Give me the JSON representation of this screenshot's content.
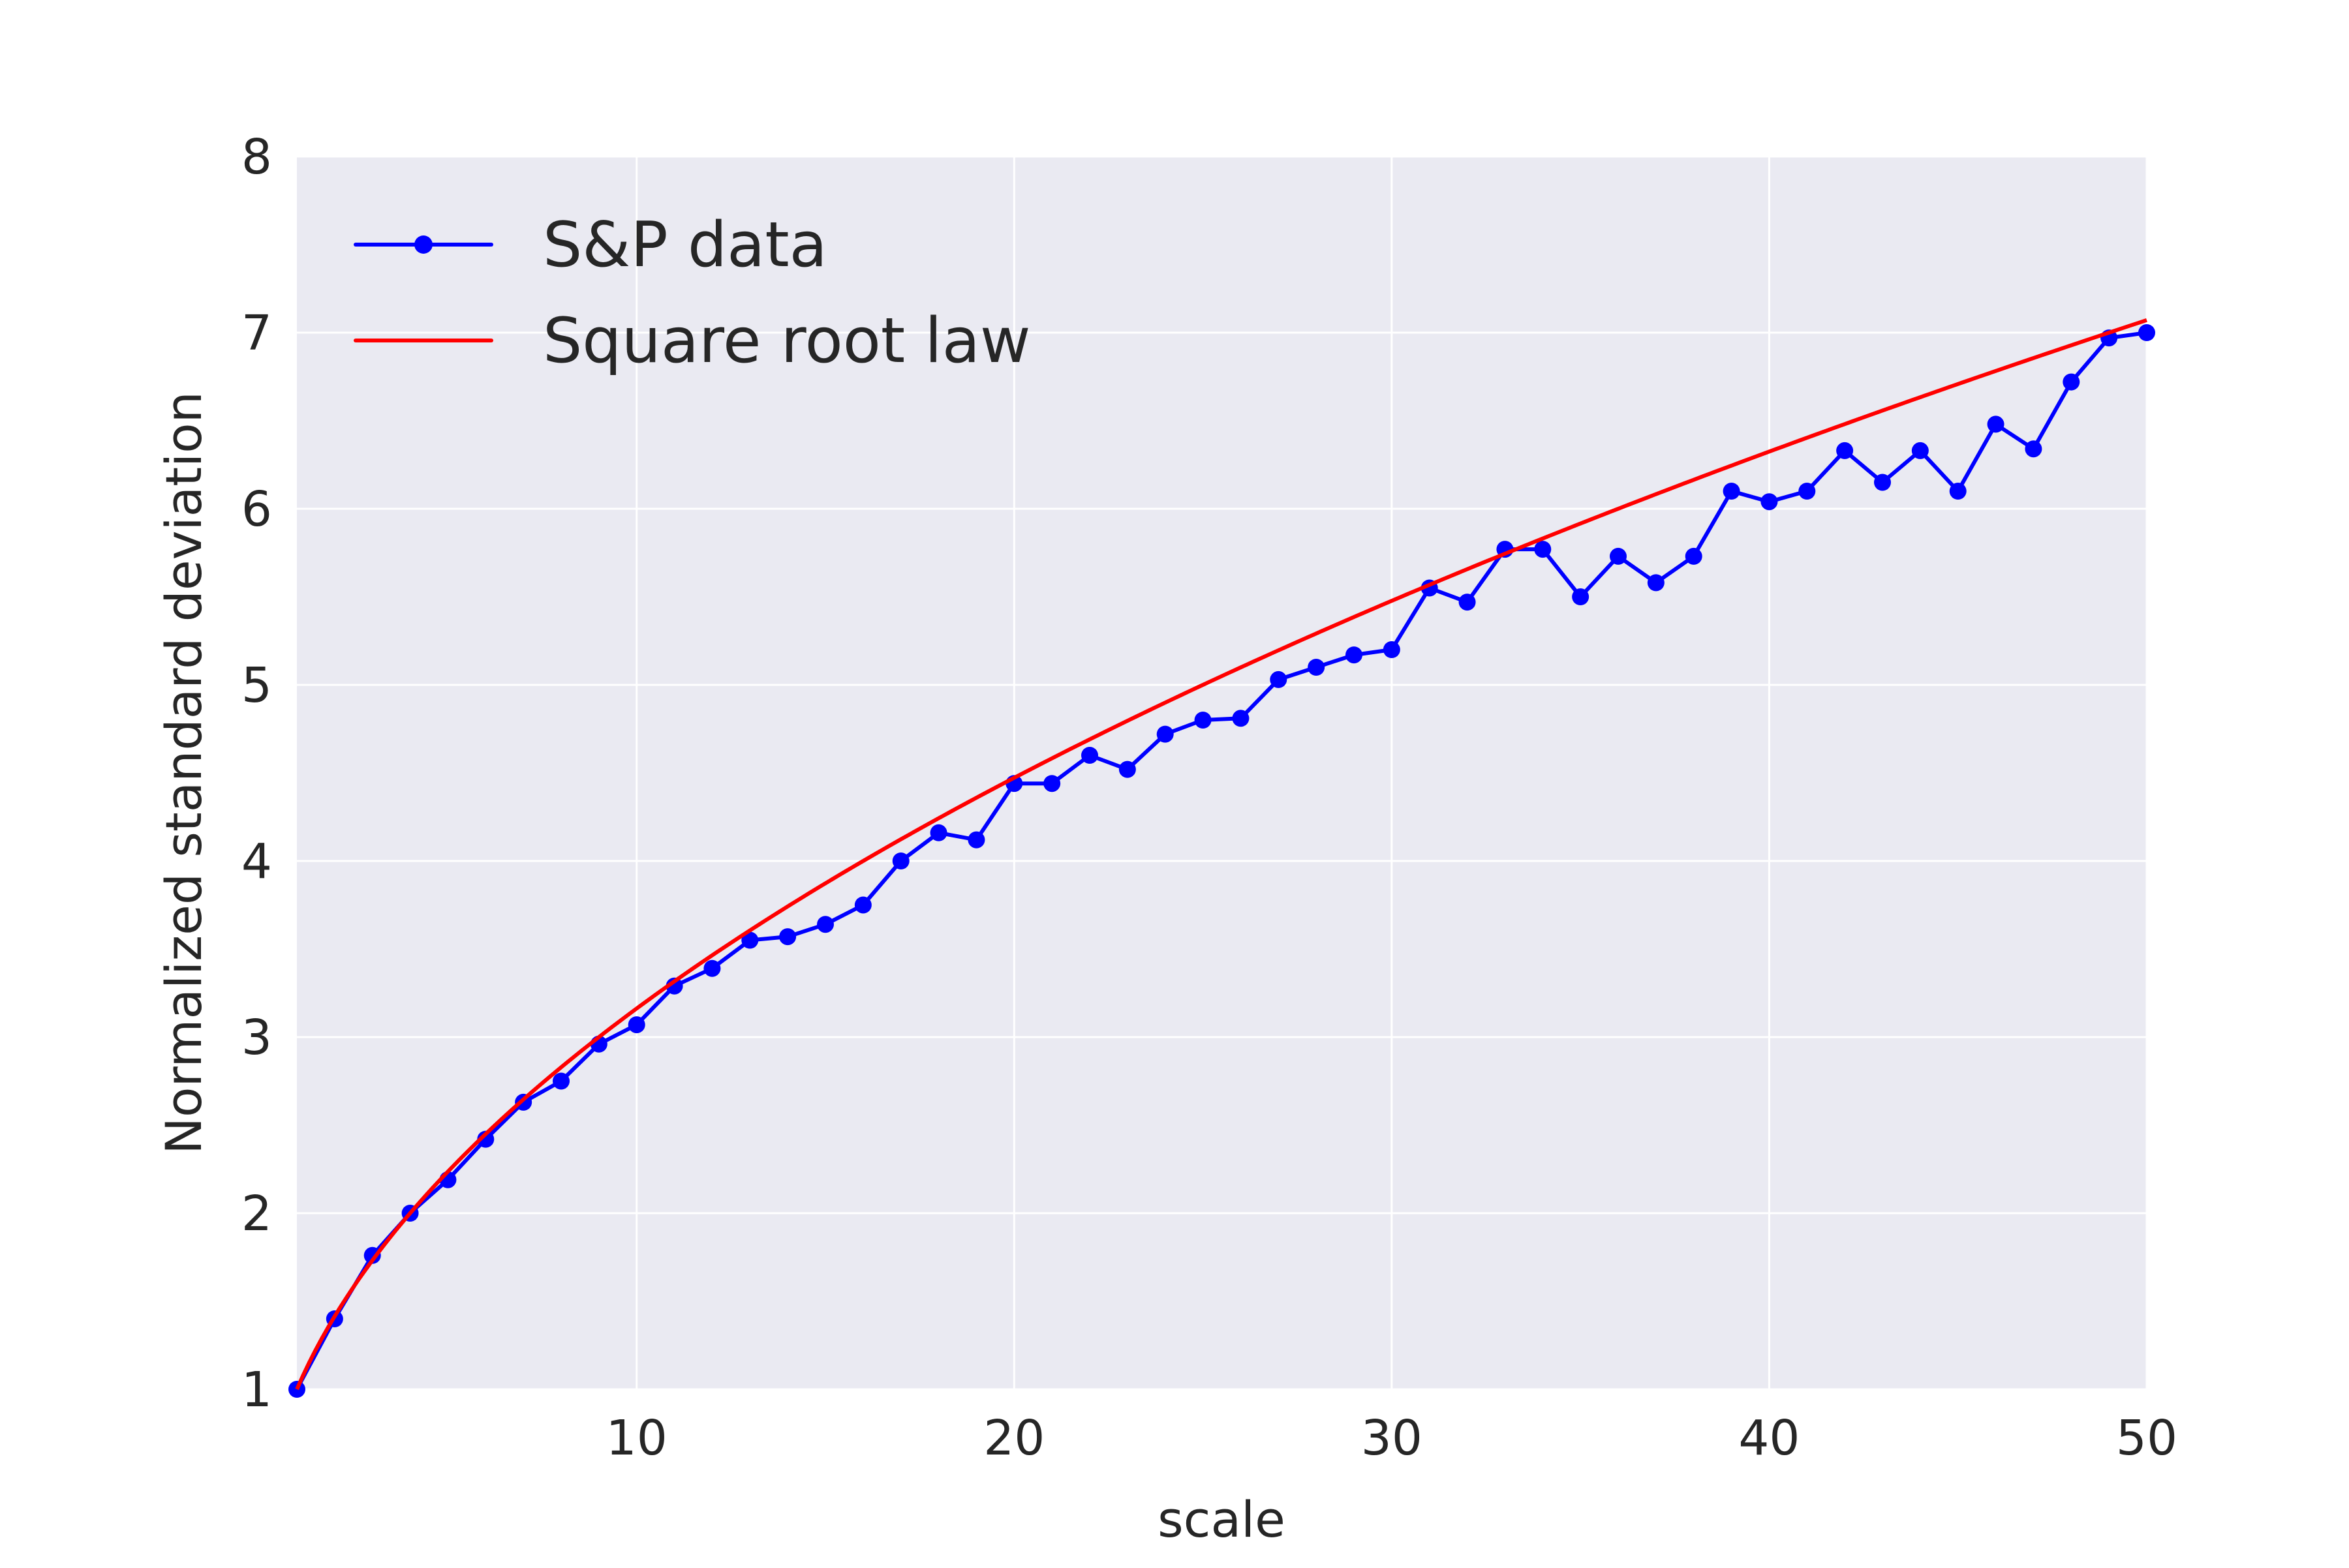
{
  "chart_data": {
    "type": "line",
    "title": "",
    "xlabel": "scale",
    "ylabel": "Normalized standard deviation",
    "xlim": [
      1,
      50
    ],
    "ylim": [
      1,
      8
    ],
    "xticks": [
      10,
      20,
      30,
      40,
      50
    ],
    "yticks": [
      1,
      2,
      3,
      4,
      5,
      6,
      7,
      8
    ],
    "grid": true,
    "legend_position": "top-left",
    "series": [
      {
        "name": "S&P data",
        "color": "#0000ff",
        "marker": "circle",
        "x": [
          1,
          2,
          3,
          4,
          5,
          6,
          7,
          8,
          9,
          10,
          11,
          12,
          13,
          14,
          15,
          16,
          17,
          18,
          19,
          20,
          21,
          22,
          23,
          24,
          25,
          26,
          27,
          28,
          29,
          30,
          31,
          32,
          33,
          34,
          35,
          36,
          37,
          38,
          39,
          40,
          41,
          42,
          43,
          44,
          45,
          46,
          47,
          48,
          49,
          50
        ],
        "y": [
          1.0,
          1.4,
          1.76,
          2.0,
          2.19,
          2.42,
          2.63,
          2.75,
          2.96,
          3.07,
          3.29,
          3.39,
          3.55,
          3.57,
          3.64,
          3.75,
          4.0,
          4.16,
          4.12,
          4.44,
          4.44,
          4.6,
          4.52,
          4.72,
          4.8,
          4.81,
          5.03,
          5.1,
          5.17,
          5.2,
          5.55,
          5.47,
          5.77,
          5.77,
          5.5,
          5.73,
          5.58,
          5.73,
          6.1,
          6.04,
          6.1,
          6.33,
          6.15,
          6.33,
          6.1,
          6.48,
          6.34,
          6.72,
          6.97,
          7.0
        ]
      },
      {
        "name": "Square root law",
        "color": "#ff0000",
        "marker": "none",
        "function": "sqrt"
      }
    ]
  },
  "colors": {
    "plot_background": "#eaeaf2",
    "grid": "#ffffff",
    "text": "#262626"
  }
}
